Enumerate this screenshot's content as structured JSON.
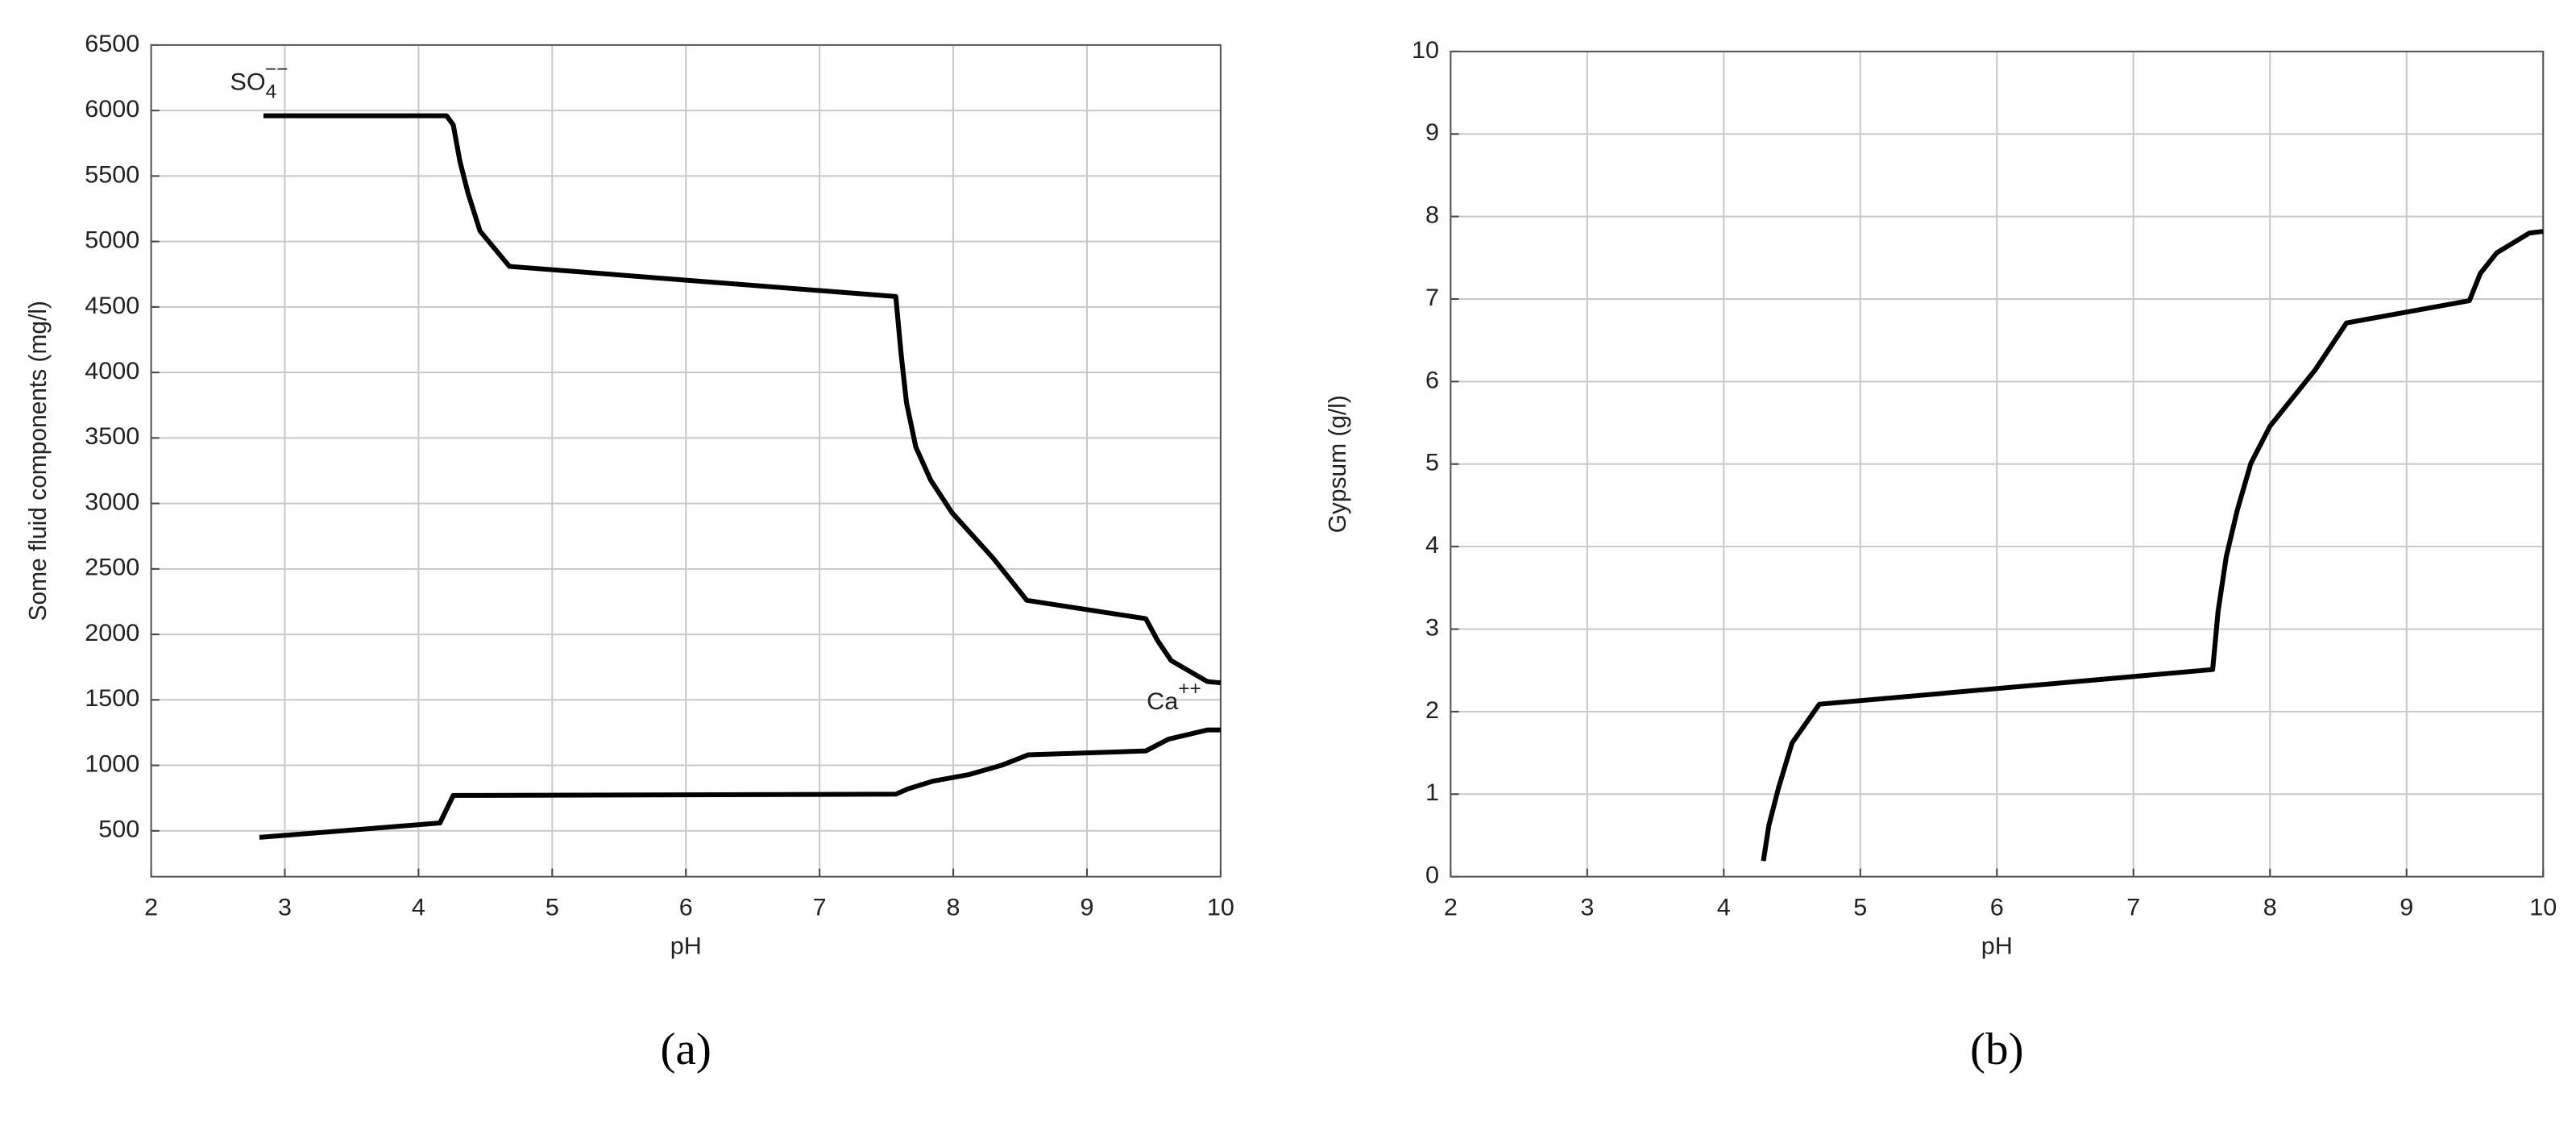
{
  "chart_data": [
    {
      "type": "line",
      "label": "(a)",
      "x_label": "pH",
      "y_label": "Some fluid components (mg/l)",
      "xlim": [
        2,
        10
      ],
      "xticks": [
        2,
        3,
        4,
        5,
        6,
        7,
        8,
        9,
        10
      ],
      "ylim": [
        150,
        6500
      ],
      "yticks": [
        500,
        1000,
        1500,
        2000,
        2500,
        3000,
        3500,
        4000,
        4500,
        5000,
        5500,
        6000,
        6500
      ],
      "grid": true,
      "annotations": [
        {
          "text": "SO",
          "sub": "4",
          "sup": "−−"
        },
        {
          "text": "Ca",
          "sup": "++"
        }
      ],
      "series": [
        {
          "color": "#000000",
          "x": [
            2.84,
            4.21,
            4.26,
            4.31,
            4.37,
            4.46,
            4.68,
            7.57,
            7.61,
            7.65,
            7.72,
            7.83,
            7.99,
            8.3,
            8.55,
            9.44,
            9.53,
            9.63,
            9.9,
            10
          ],
          "values": [
            5960,
            5960,
            5890,
            5610,
            5370,
            5080,
            4810,
            4580,
            4140,
            3770,
            3430,
            3180,
            2930,
            2580,
            2260,
            2120,
            1950,
            1800,
            1640,
            1630
          ]
        },
        {
          "color": "#000000",
          "x": [
            2.81,
            4.16,
            4.26,
            4.43,
            7.57,
            7.66,
            7.85,
            8.12,
            8.36,
            8.56,
            9.44,
            9.61,
            9.9,
            10
          ],
          "values": [
            450,
            560,
            770,
            770,
            780,
            820,
            880,
            930,
            1000,
            1080,
            1110,
            1200,
            1270,
            1270
          ]
        }
      ]
    },
    {
      "type": "line",
      "label": "(b)",
      "x_label": "pH",
      "y_label": "Gypsum (g/l)",
      "xlim": [
        2,
        10
      ],
      "xticks": [
        2,
        3,
        4,
        5,
        6,
        7,
        8,
        9,
        10
      ],
      "ylim": [
        0,
        10
      ],
      "yticks": [
        0,
        1,
        2,
        3,
        4,
        5,
        6,
        7,
        8,
        9,
        10
      ],
      "grid": true,
      "series": [
        {
          "color": "#000000",
          "x": [
            4.29,
            4.33,
            4.4,
            4.5,
            4.7,
            7.58,
            7.62,
            7.68,
            7.76,
            7.86,
            8.0,
            8.33,
            8.56,
            9.46,
            9.54,
            9.66,
            9.9,
            10
          ],
          "values": [
            0.19,
            0.62,
            1.07,
            1.62,
            2.09,
            2.51,
            3.22,
            3.88,
            4.44,
            5.01,
            5.46,
            6.14,
            6.71,
            6.98,
            7.31,
            7.56,
            7.8,
            7.82
          ]
        }
      ]
    }
  ]
}
